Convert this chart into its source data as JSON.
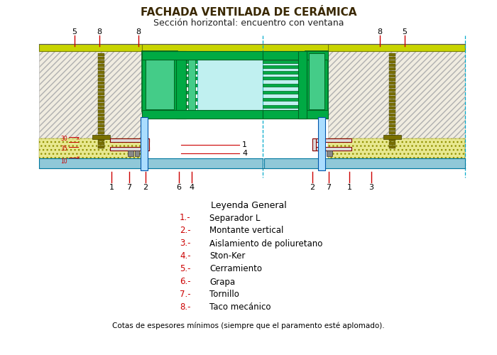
{
  "title": "FACHADA VENTILADA DE CERÁMICA",
  "subtitle": "Sección horizontal: encuentro con ventana",
  "title_color": "#3a2800",
  "subtitle_color": "#222222",
  "legend_title": "Leyenda General",
  "legend_items": [
    [
      "1.-",
      "Separador L"
    ],
    [
      "2.-",
      "Montante vertical"
    ],
    [
      "3.-",
      "Aislamiento de poliuretano"
    ],
    [
      "4.-",
      "Ston-Ker"
    ],
    [
      "5.-",
      "Cerramiento"
    ],
    [
      "6.-",
      "Grapa"
    ],
    [
      "7.-",
      "Tornillo"
    ],
    [
      "8.-",
      "Taco mecánico"
    ]
  ],
  "legend_num_color": "#cc0000",
  "legend_text_color": "#cc0000",
  "footer": "Cotas de espesores mínimos (siempre que el paramento esté aplomado).",
  "bg_color": "#ffffff",
  "wall_fc": "#f0ece0",
  "wall_ec": "#b0b0b0",
  "yellow_band_fc": "#c8d400",
  "yellow_band_ec": "#7a8000",
  "blue_band_fc": "#90c8d8",
  "blue_band_ec": "#0078a0",
  "insul_fc": "#e8e890",
  "insul_ec": "#909000",
  "green_frame": "#00aa44",
  "green_frame_ec": "#006622",
  "green_light": "#44cc88",
  "green_mid": "#00bb55",
  "teal_rail": "#00aaaa",
  "olive": "#7a7000",
  "red": "#cc0000",
  "cyan_line": "#00aacc",
  "dark_red": "#880000",
  "label_color": "#000000",
  "dim_red": "#cc0000"
}
